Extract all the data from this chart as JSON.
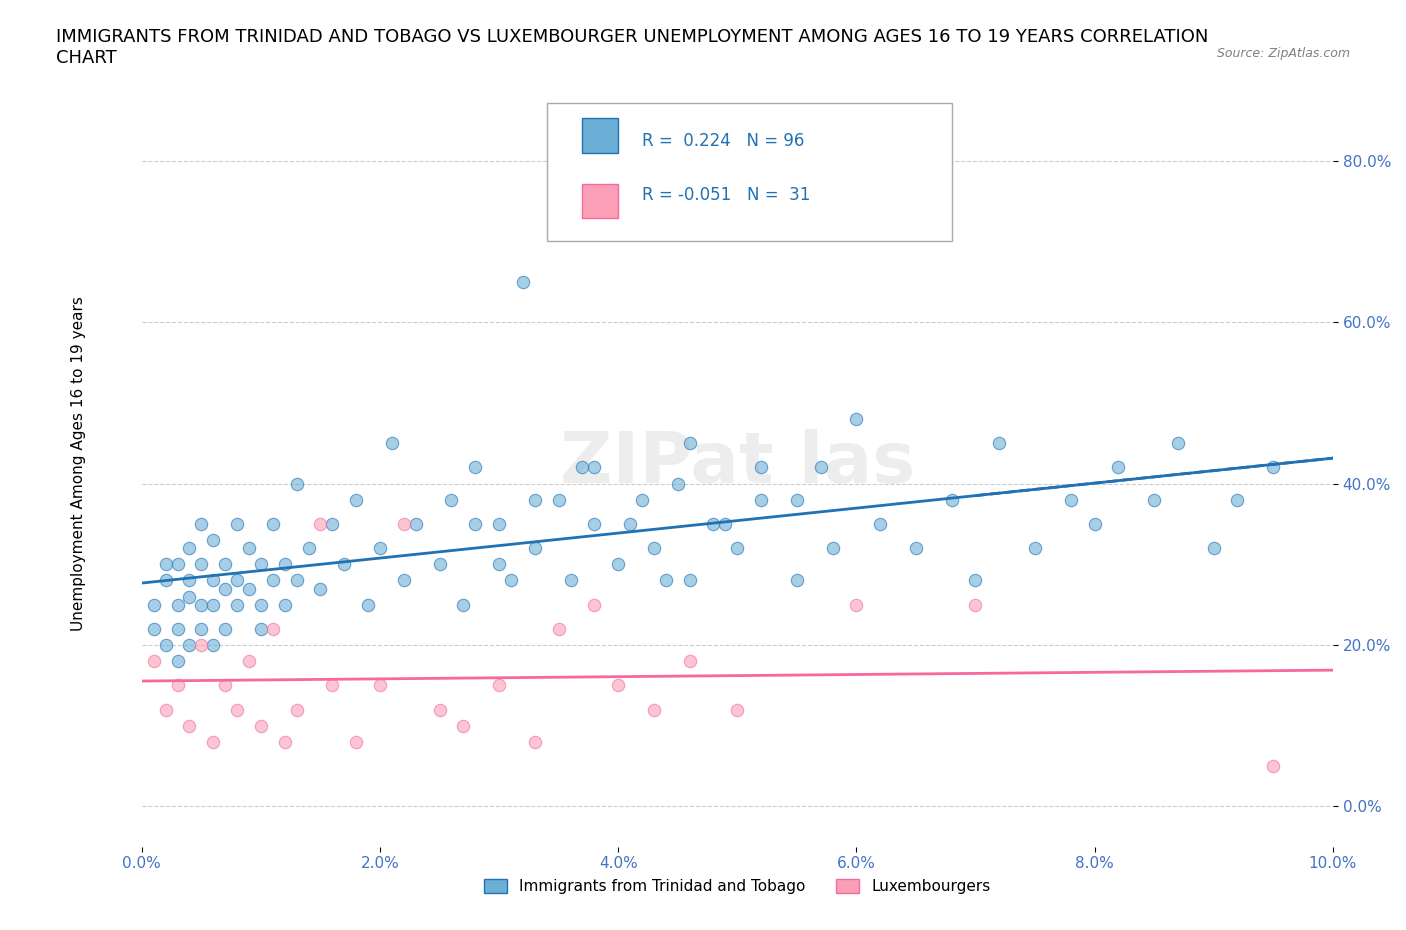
{
  "title": "IMMIGRANTS FROM TRINIDAD AND TOBAGO VS LUXEMBOURGER UNEMPLOYMENT AMONG AGES 16 TO 19 YEARS CORRELATION\nCHART",
  "source": "Source: ZipAtlas.com",
  "xlabel": "",
  "ylabel": "Unemployment Among Ages 16 to 19 years",
  "xlim": [
    0.0,
    0.1
  ],
  "ylim": [
    -0.05,
    0.9
  ],
  "xticks": [
    0.0,
    0.02,
    0.04,
    0.06,
    0.08,
    0.1
  ],
  "xticklabels": [
    "0.0%",
    "2.0%",
    "4.0%",
    "6.0%",
    "8.0%",
    "10.0%"
  ],
  "ytick_positions": [
    0.0,
    0.2,
    0.4,
    0.6,
    0.8
  ],
  "ytick_labels": [
    "0.0%",
    "20.0%",
    "40.0%",
    "60.0%",
    "80.0%"
  ],
  "blue_color": "#6baed6",
  "pink_color": "#fa9fb5",
  "blue_line_color": "#2171b5",
  "pink_line_color": "#f768a1",
  "watermark": "ZIPat las",
  "watermark_color": "#cccccc",
  "R_blue": 0.224,
  "N_blue": 96,
  "R_pink": -0.051,
  "N_pink": 31,
  "legend_label_blue": "Immigrants from Trinidad and Tobago",
  "legend_label_pink": "Luxembourgers",
  "blue_points_x": [
    0.001,
    0.001,
    0.002,
    0.002,
    0.002,
    0.003,
    0.003,
    0.003,
    0.003,
    0.004,
    0.004,
    0.004,
    0.004,
    0.005,
    0.005,
    0.005,
    0.005,
    0.006,
    0.006,
    0.006,
    0.006,
    0.007,
    0.007,
    0.007,
    0.008,
    0.008,
    0.008,
    0.009,
    0.009,
    0.01,
    0.01,
    0.01,
    0.011,
    0.011,
    0.012,
    0.012,
    0.013,
    0.013,
    0.014,
    0.015,
    0.016,
    0.017,
    0.018,
    0.019,
    0.02,
    0.021,
    0.022,
    0.023,
    0.025,
    0.026,
    0.027,
    0.028,
    0.03,
    0.031,
    0.032,
    0.033,
    0.035,
    0.036,
    0.037,
    0.038,
    0.04,
    0.042,
    0.043,
    0.045,
    0.046,
    0.048,
    0.05,
    0.052,
    0.055,
    0.057,
    0.06,
    0.062,
    0.065,
    0.068,
    0.07,
    0.072,
    0.075,
    0.078,
    0.08,
    0.082,
    0.085,
    0.087,
    0.09,
    0.092,
    0.095,
    0.028,
    0.03,
    0.033,
    0.038,
    0.041,
    0.044,
    0.046,
    0.049,
    0.052,
    0.055,
    0.058
  ],
  "blue_points_y": [
    0.22,
    0.25,
    0.28,
    0.3,
    0.2,
    0.25,
    0.3,
    0.22,
    0.18,
    0.28,
    0.32,
    0.26,
    0.2,
    0.3,
    0.25,
    0.35,
    0.22,
    0.28,
    0.33,
    0.25,
    0.2,
    0.3,
    0.27,
    0.22,
    0.35,
    0.28,
    0.25,
    0.32,
    0.27,
    0.3,
    0.25,
    0.22,
    0.35,
    0.28,
    0.3,
    0.25,
    0.4,
    0.28,
    0.32,
    0.27,
    0.35,
    0.3,
    0.38,
    0.25,
    0.32,
    0.45,
    0.28,
    0.35,
    0.3,
    0.38,
    0.25,
    0.42,
    0.35,
    0.28,
    0.65,
    0.32,
    0.38,
    0.28,
    0.42,
    0.35,
    0.3,
    0.38,
    0.32,
    0.4,
    0.28,
    0.35,
    0.32,
    0.38,
    0.28,
    0.42,
    0.48,
    0.35,
    0.32,
    0.38,
    0.28,
    0.45,
    0.32,
    0.38,
    0.35,
    0.42,
    0.38,
    0.45,
    0.32,
    0.38,
    0.42,
    0.35,
    0.3,
    0.38,
    0.42,
    0.35,
    0.28,
    0.45,
    0.35,
    0.42,
    0.38,
    0.32
  ],
  "pink_points_x": [
    0.001,
    0.002,
    0.003,
    0.004,
    0.005,
    0.006,
    0.007,
    0.008,
    0.009,
    0.01,
    0.011,
    0.012,
    0.013,
    0.015,
    0.016,
    0.018,
    0.02,
    0.022,
    0.025,
    0.027,
    0.03,
    0.033,
    0.035,
    0.038,
    0.04,
    0.043,
    0.046,
    0.05,
    0.06,
    0.07,
    0.095
  ],
  "pink_points_y": [
    0.18,
    0.12,
    0.15,
    0.1,
    0.2,
    0.08,
    0.15,
    0.12,
    0.18,
    0.1,
    0.22,
    0.08,
    0.12,
    0.35,
    0.15,
    0.08,
    0.15,
    0.35,
    0.12,
    0.1,
    0.15,
    0.08,
    0.22,
    0.25,
    0.15,
    0.12,
    0.18,
    0.12,
    0.25,
    0.25,
    0.05
  ]
}
